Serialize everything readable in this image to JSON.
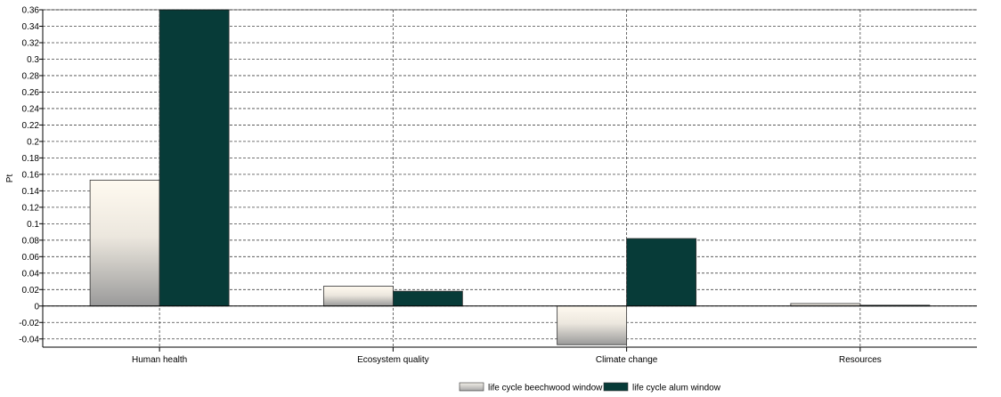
{
  "chart_data": {
    "type": "bar",
    "ylabel": "Pt",
    "ylim": [
      -0.05,
      0.36
    ],
    "yticks": [
      0.36,
      0.34,
      0.32,
      0.3,
      0.28,
      0.26,
      0.24,
      0.22,
      0.2,
      0.18,
      0.16,
      0.14,
      0.12,
      0.1,
      0.08,
      0.06,
      0.04,
      0.02,
      0,
      -0.02,
      -0.04
    ],
    "ytick_labels": [
      "0.36",
      "0.34",
      "0.32",
      "0.3",
      "0.28",
      "0.26",
      "0.24",
      "0.22",
      "0.2",
      "0.18",
      "0.16",
      "0.14",
      "0.12",
      "0.1",
      "0.08",
      "0.06",
      "0.04",
      "0.02",
      "0",
      "-0.02",
      "-0.04"
    ],
    "categories": [
      "Human health",
      "Ecosystem quality",
      "Climate change",
      "Resources"
    ],
    "series": [
      {
        "name": "life cycle beechwood window",
        "values": [
          0.153,
          0.024,
          -0.047,
          0.003
        ],
        "color": "#d8d4cc"
      },
      {
        "name": "life cycle alum window",
        "values": [
          0.36,
          0.018,
          0.082,
          0.001
        ],
        "color": "#073b38"
      }
    ],
    "grid": true,
    "legend_position": "bottom-center"
  }
}
